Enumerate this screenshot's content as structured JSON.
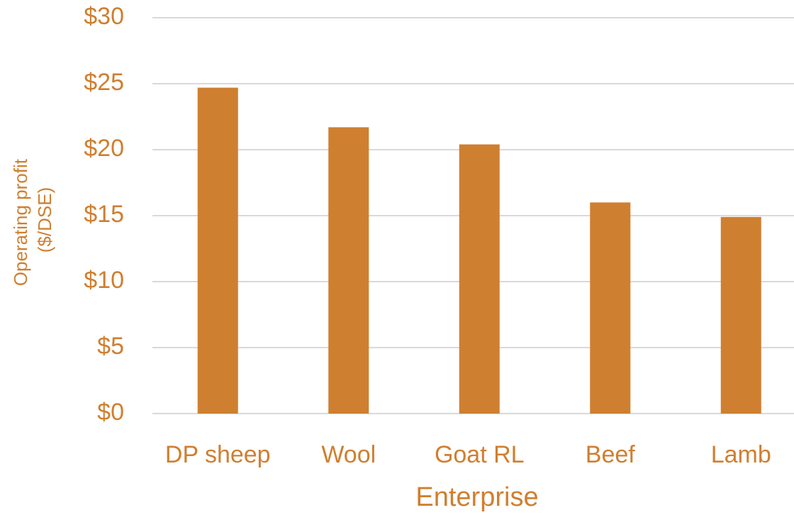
{
  "colors": {
    "bar": "#CF7F30",
    "text": "#CF7F30",
    "grid": "#D9D9D9",
    "background": "#FFFFFF"
  },
  "chart_data": {
    "type": "bar",
    "title": "",
    "xlabel": "Enterprise",
    "ylabel_lines": [
      "Operating profit",
      "($/DSE)"
    ],
    "categories": [
      "DP sheep",
      "Wool",
      "Goat RL",
      "Beef",
      "Lamb"
    ],
    "values": [
      24.7,
      21.7,
      20.4,
      16.0,
      14.9
    ],
    "ylim": [
      0,
      30
    ],
    "yticks": [
      0,
      5,
      10,
      15,
      20,
      25,
      30
    ],
    "ytick_labels": [
      "$0",
      "$5",
      "$10",
      "$15",
      "$20",
      "$25",
      "$30"
    ],
    "grid": true,
    "legend": false
  }
}
